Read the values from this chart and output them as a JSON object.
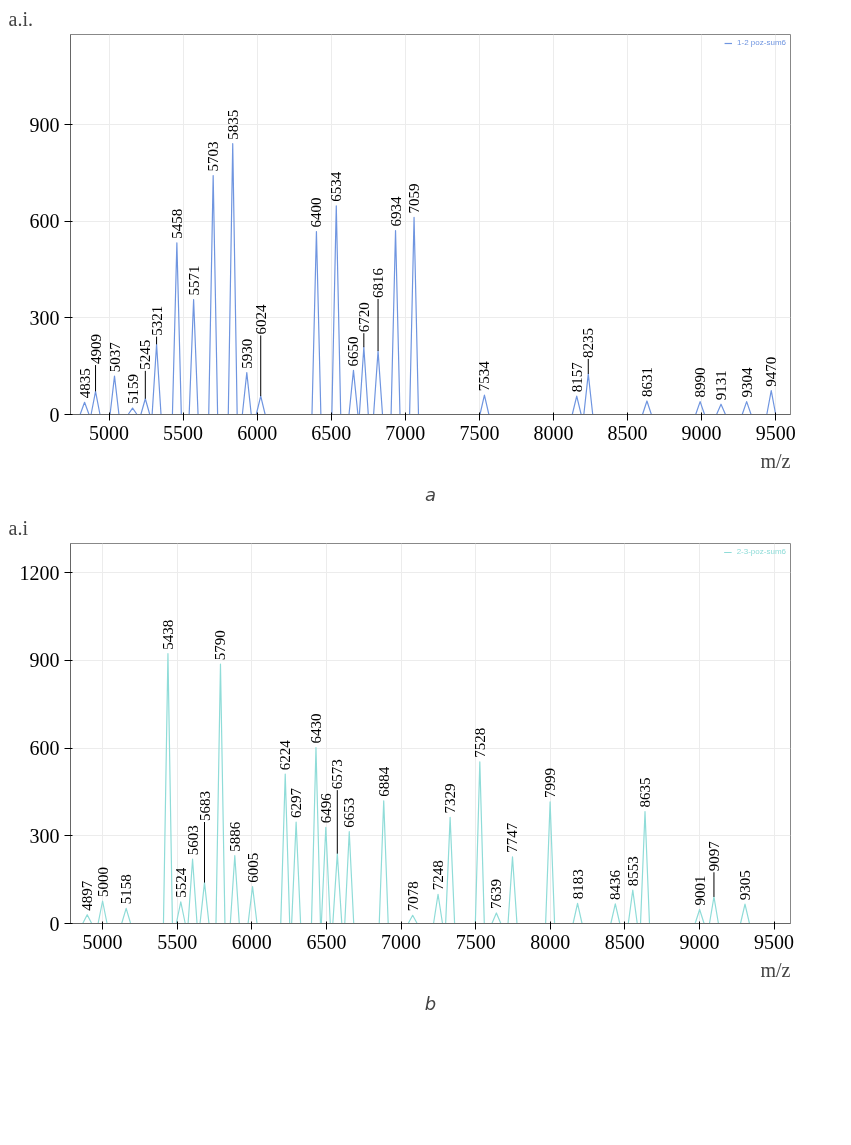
{
  "chart_data": [
    {
      "type": "line",
      "ylabel": "a.i.",
      "xlabel": "m/z",
      "xlim": [
        4740,
        9600
      ],
      "ylim": [
        0,
        1180
      ],
      "xticks": [
        5000,
        5500,
        6000,
        6500,
        7000,
        7500,
        8000,
        8500,
        9000,
        9500
      ],
      "yticks": [
        0,
        300,
        600,
        900
      ],
      "grid": true,
      "legend": "top right",
      "series": [
        {
          "name": "1-2 poz-sum6",
          "color": "#6f95e0",
          "x": [
            4805,
            4835,
            4865,
            4879,
            4909,
            4939,
            5007,
            5037,
            5067,
            5129,
            5159,
            5189,
            5215,
            5245,
            5275,
            5291,
            5321,
            5351,
            5428,
            5458,
            5488,
            5541,
            5571,
            5601,
            5673,
            5703,
            5733,
            5805,
            5835,
            5865,
            5900,
            5930,
            5960,
            5994,
            6024,
            6054,
            6370,
            6400,
            6430,
            6504,
            6534,
            6564,
            6620,
            6650,
            6680,
            6690,
            6720,
            6750,
            6786,
            6816,
            6846,
            6904,
            6934,
            6964,
            7029,
            7059,
            7089,
            7504,
            7534,
            7564,
            8127,
            8157,
            8187,
            8205,
            8235,
            8265,
            8601,
            8631,
            8661,
            8960,
            8990,
            9020,
            9101,
            9131,
            9161,
            9274,
            9304,
            9334,
            9440,
            9470,
            9500
          ],
          "values": [
            0,
            38,
            0,
            0,
            72,
            0,
            0,
            119,
            0,
            0,
            20,
            0,
            0,
            49,
            0,
            0,
            218,
            0,
            0,
            533,
            0,
            0,
            357,
            0,
            0,
            742,
            0,
            0,
            841,
            0,
            0,
            130,
            0,
            0,
            57,
            0,
            0,
            568,
            0,
            0,
            648,
            0,
            0,
            137,
            0,
            0,
            209,
            0,
            0,
            197,
            0,
            0,
            571,
            0,
            0,
            612,
            0,
            0,
            60,
            0,
            0,
            57,
            0,
            0,
            126,
            0,
            0,
            42,
            0,
            0,
            40,
            0,
            0,
            32,
            0,
            0,
            40,
            0,
            0,
            74,
            0
          ]
        }
      ],
      "annotations": [
        {
          "text": "4835",
          "x": 4835,
          "y": 38
        },
        {
          "text": "4909",
          "x": 4909,
          "y": 72
        },
        {
          "text": "5037",
          "x": 5037,
          "y": 119
        },
        {
          "text": "5159",
          "x": 5159,
          "y": 20
        },
        {
          "text": "5245",
          "x": 5245,
          "y": 49
        },
        {
          "text": "5321",
          "x": 5321,
          "y": 218
        },
        {
          "text": "5458",
          "x": 5458,
          "y": 533
        },
        {
          "text": "5571",
          "x": 5571,
          "y": 357
        },
        {
          "text": "5703",
          "x": 5703,
          "y": 742
        },
        {
          "text": "5835",
          "x": 5835,
          "y": 841
        },
        {
          "text": "5930",
          "x": 5930,
          "y": 130
        },
        {
          "text": "6024",
          "x": 6024,
          "y": 57
        },
        {
          "text": "6400",
          "x": 6400,
          "y": 568
        },
        {
          "text": "6534",
          "x": 6534,
          "y": 648
        },
        {
          "text": "6650",
          "x": 6650,
          "y": 137
        },
        {
          "text": "6720",
          "x": 6720,
          "y": 209
        },
        {
          "text": "6816",
          "x": 6816,
          "y": 197
        },
        {
          "text": "6934",
          "x": 6934,
          "y": 571
        },
        {
          "text": "7059",
          "x": 7059,
          "y": 612
        },
        {
          "text": "7534",
          "x": 7534,
          "y": 60
        },
        {
          "text": "8157",
          "x": 8157,
          "y": 57
        },
        {
          "text": "8235",
          "x": 8235,
          "y": 126
        },
        {
          "text": "8631",
          "x": 8631,
          "y": 42
        },
        {
          "text": "8990",
          "x": 8990,
          "y": 40
        },
        {
          "text": "9131",
          "x": 9131,
          "y": 32
        },
        {
          "text": "9304",
          "x": 9304,
          "y": 40
        },
        {
          "text": "9470",
          "x": 9470,
          "y": 74
        },
        "a"
      ]
    },
    {
      "type": "line",
      "ylabel": "a.i",
      "xlabel": "m/z",
      "xlim": [
        4785,
        9610
      ],
      "ylim": [
        0,
        1300
      ],
      "xticks": [
        5000,
        5500,
        6000,
        6500,
        7000,
        7500,
        8000,
        8500,
        9000,
        9500
      ],
      "yticks": [
        0,
        300,
        600,
        900,
        1200
      ],
      "grid": true,
      "legend": "top right",
      "series": [
        {
          "name": "2-3-poz-sum6",
          "color": "#8fdcd8",
          "x": [
            4867,
            4897,
            4927,
            4970,
            5000,
            5030,
            5128,
            5158,
            5188,
            5408,
            5438,
            5468,
            5494,
            5524,
            5554,
            5573,
            5603,
            5633,
            5653,
            5683,
            5713,
            5760,
            5790,
            5820,
            5856,
            5886,
            5916,
            5975,
            6005,
            6035,
            6194,
            6224,
            6254,
            6267,
            6297,
            6327,
            6400,
            6430,
            6460,
            6466,
            6496,
            6526,
            6543,
            6573,
            6603,
            6623,
            6653,
            6683,
            6854,
            6884,
            6914,
            7048,
            7078,
            7108,
            7218,
            7248,
            7278,
            7299,
            7329,
            7359,
            7498,
            7528,
            7558,
            7609,
            7639,
            7669,
            7717,
            7747,
            7777,
            7969,
            7999,
            8029,
            8153,
            8183,
            8213,
            8406,
            8436,
            8466,
            8523,
            8553,
            8583,
            8605,
            8635,
            8665,
            8971,
            9001,
            9031,
            9067,
            9097,
            9127,
            9275,
            9305,
            9335
          ],
          "values": [
            0,
            30,
            0,
            0,
            77,
            0,
            0,
            52,
            0,
            0,
            923,
            0,
            0,
            74,
            0,
            0,
            220,
            0,
            0,
            140,
            0,
            0,
            887,
            0,
            0,
            232,
            0,
            0,
            126,
            0,
            0,
            511,
            0,
            0,
            347,
            0,
            0,
            602,
            0,
            0,
            329,
            0,
            0,
            239,
            0,
            0,
            314,
            0,
            0,
            420,
            0,
            0,
            28,
            0,
            0,
            100,
            0,
            0,
            363,
            0,
            0,
            553,
            0,
            0,
            36,
            0,
            0,
            228,
            0,
            0,
            416,
            0,
            0,
            69,
            0,
            0,
            67,
            0,
            0,
            114,
            0,
            0,
            383,
            0,
            0,
            48,
            0,
            0,
            91,
            0,
            0,
            66,
            0
          ]
        }
      ],
      "annotations": [
        {
          "text": "4897",
          "x": 4897,
          "y": 30
        },
        {
          "text": "5000",
          "x": 5000,
          "y": 77
        },
        {
          "text": "5158",
          "x": 5158,
          "y": 52
        },
        {
          "text": "5438",
          "x": 5438,
          "y": 923
        },
        {
          "text": "5524",
          "x": 5524,
          "y": 74
        },
        {
          "text": "5603",
          "x": 5603,
          "y": 220
        },
        {
          "text": "5683",
          "x": 5683,
          "y": 140
        },
        {
          "text": "5790",
          "x": 5790,
          "y": 887
        },
        {
          "text": "5886",
          "x": 5886,
          "y": 232
        },
        {
          "text": "6005",
          "x": 6005,
          "y": 126
        },
        {
          "text": "6224",
          "x": 6224,
          "y": 511
        },
        {
          "text": "6297",
          "x": 6297,
          "y": 347
        },
        {
          "text": "6430",
          "x": 6430,
          "y": 602
        },
        {
          "text": "6496",
          "x": 6496,
          "y": 329
        },
        {
          "text": "6573",
          "x": 6573,
          "y": 239
        },
        {
          "text": "6653",
          "x": 6653,
          "y": 314
        },
        {
          "text": "6884",
          "x": 6884,
          "y": 420
        },
        {
          "text": "7078",
          "x": 7078,
          "y": 28
        },
        {
          "text": "7248",
          "x": 7248,
          "y": 100
        },
        {
          "text": "7329",
          "x": 7329,
          "y": 363
        },
        {
          "text": "7528",
          "x": 7528,
          "y": 553
        },
        {
          "text": "7639",
          "x": 7639,
          "y": 36
        },
        {
          "text": "7747",
          "x": 7747,
          "y": 228
        },
        {
          "text": "7999",
          "x": 7999,
          "y": 416
        },
        {
          "text": "8183",
          "x": 8183,
          "y": 69
        },
        {
          "text": "8436",
          "x": 8436,
          "y": 67
        },
        {
          "text": "8553",
          "x": 8553,
          "y": 114
        },
        {
          "text": "8635",
          "x": 8635,
          "y": 383
        },
        {
          "text": "9001",
          "x": 9001,
          "y": 48
        },
        {
          "text": "9097",
          "x": 9097,
          "y": 91
        },
        {
          "text": "9305",
          "x": 9305,
          "y": 66
        },
        "b"
      ]
    }
  ]
}
